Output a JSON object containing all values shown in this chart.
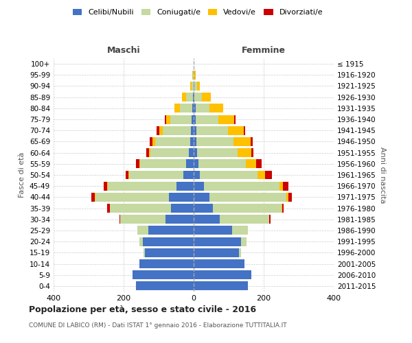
{
  "age_groups": [
    "0-4",
    "5-9",
    "10-14",
    "15-19",
    "20-24",
    "25-29",
    "30-34",
    "35-39",
    "40-44",
    "45-49",
    "50-54",
    "55-59",
    "60-64",
    "65-69",
    "70-74",
    "75-79",
    "80-84",
    "85-89",
    "90-94",
    "95-99",
    "100+"
  ],
  "birth_years": [
    "2011-2015",
    "2006-2010",
    "2001-2005",
    "1996-2000",
    "1991-1995",
    "1986-1990",
    "1981-1985",
    "1976-1980",
    "1971-1975",
    "1966-1970",
    "1961-1965",
    "1956-1960",
    "1951-1955",
    "1946-1950",
    "1941-1945",
    "1936-1940",
    "1931-1935",
    "1926-1930",
    "1921-1925",
    "1916-1920",
    "≤ 1915"
  ],
  "male": {
    "celibi": [
      165,
      175,
      155,
      140,
      145,
      130,
      80,
      65,
      70,
      50,
      30,
      22,
      14,
      10,
      8,
      6,
      4,
      2,
      0,
      0,
      0
    ],
    "coniugati": [
      0,
      0,
      0,
      3,
      10,
      30,
      130,
      175,
      210,
      195,
      155,
      130,
      110,
      100,
      80,
      60,
      35,
      20,
      5,
      2,
      0
    ],
    "vedovi": [
      0,
      0,
      0,
      0,
      0,
      0,
      0,
      0,
      2,
      2,
      2,
      3,
      4,
      8,
      10,
      12,
      15,
      12,
      5,
      2,
      0
    ],
    "divorziati": [
      0,
      0,
      0,
      0,
      0,
      0,
      2,
      8,
      10,
      10,
      8,
      10,
      8,
      8,
      8,
      5,
      0,
      0,
      0,
      0,
      0
    ]
  },
  "female": {
    "nubili": [
      155,
      165,
      145,
      130,
      135,
      110,
      75,
      55,
      45,
      30,
      18,
      14,
      10,
      8,
      8,
      5,
      5,
      2,
      1,
      0,
      0
    ],
    "coniugate": [
      0,
      0,
      0,
      5,
      15,
      45,
      140,
      195,
      220,
      215,
      165,
      135,
      115,
      105,
      90,
      65,
      40,
      22,
      8,
      2,
      0
    ],
    "vedove": [
      0,
      0,
      0,
      0,
      0,
      0,
      0,
      2,
      5,
      10,
      20,
      30,
      40,
      50,
      45,
      45,
      40,
      25,
      8,
      3,
      0
    ],
    "divorziate": [
      0,
      0,
      0,
      0,
      0,
      0,
      5,
      5,
      10,
      15,
      20,
      15,
      5,
      5,
      5,
      5,
      0,
      0,
      0,
      0,
      0
    ]
  },
  "colors": {
    "celibi": "#4472c4",
    "coniugati": "#c5d9a0",
    "vedovi": "#ffc000",
    "divorziati": "#cc0000"
  },
  "xlim": 400,
  "title": "Popolazione per età, sesso e stato civile - 2016",
  "subtitle": "COMUNE DI LABICO (RM) - Dati ISTAT 1° gennaio 2016 - Elaborazione TUTTITALIA.IT",
  "ylabel_left": "Fasce di età",
  "ylabel_right": "Anni di nascita",
  "xlabel_left": "Maschi",
  "xlabel_right": "Femmine",
  "bg_color": "#ffffff",
  "grid_color": "#cccccc"
}
